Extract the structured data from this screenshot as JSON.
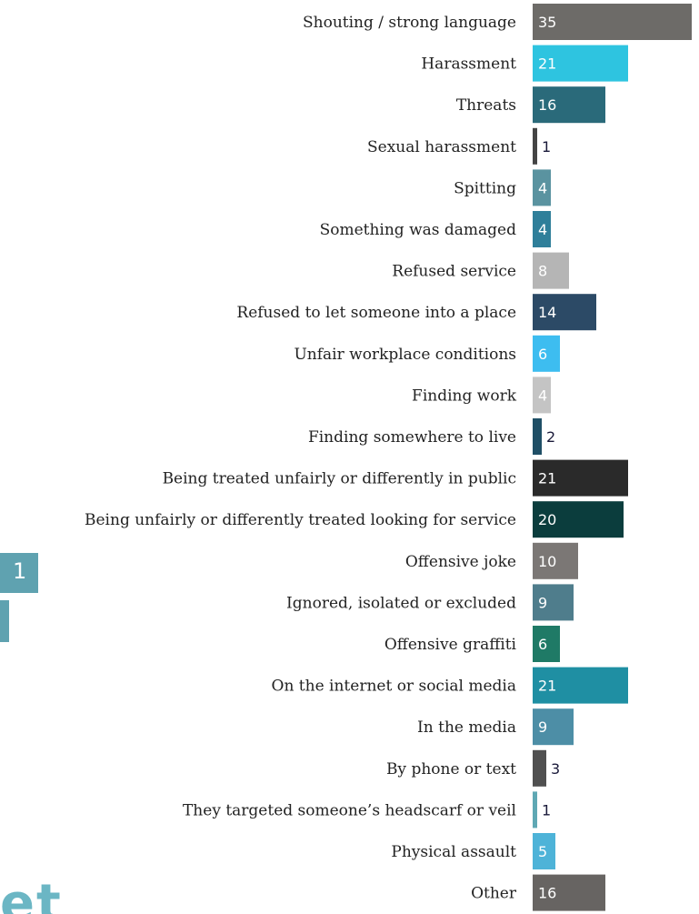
{
  "chart_data": {
    "type": "bar",
    "orientation": "horizontal",
    "categories": [
      "Shouting / strong language",
      "Harassment",
      "Threats",
      "Sexual harassment",
      "Spitting",
      "Something was damaged",
      "Refused service",
      "Refused to let someone into a place",
      "Unfair workplace conditions",
      "Finding work",
      "Finding somewhere to live",
      "Being treated unfairly or differently in public",
      "Being unfairly or differently treated looking for service",
      "Offensive joke",
      "Ignored, isolated or excluded",
      "Offensive graffiti",
      "On the internet or social media",
      "In the media",
      "By phone or text",
      "They targeted someone’s headscarf or veil",
      "Physical assault",
      "Other"
    ],
    "values": [
      35,
      21,
      16,
      1,
      4,
      4,
      8,
      14,
      6,
      4,
      2,
      21,
      20,
      10,
      9,
      6,
      21,
      9,
      3,
      1,
      5,
      16
    ],
    "colors": [
      "#6d6b68",
      "#2ec4e0",
      "#2a6a7a",
      "#444444",
      "#5a93a0",
      "#2f7f9a",
      "#b5b5b5",
      "#2c4a66",
      "#3dbdf0",
      "#c4c4c4",
      "#1f4f66",
      "#2a2a2a",
      "#0b3d3d",
      "#7b7775",
      "#4f7d8c",
      "#1f7a66",
      "#1f8fa3",
      "#4d8ea6",
      "#505050",
      "#5fa8b4",
      "#4eb3d8",
      "#676462"
    ],
    "data_labels": true
  },
  "fragments": {
    "left_number": "1",
    "bottom_text": "et"
  }
}
